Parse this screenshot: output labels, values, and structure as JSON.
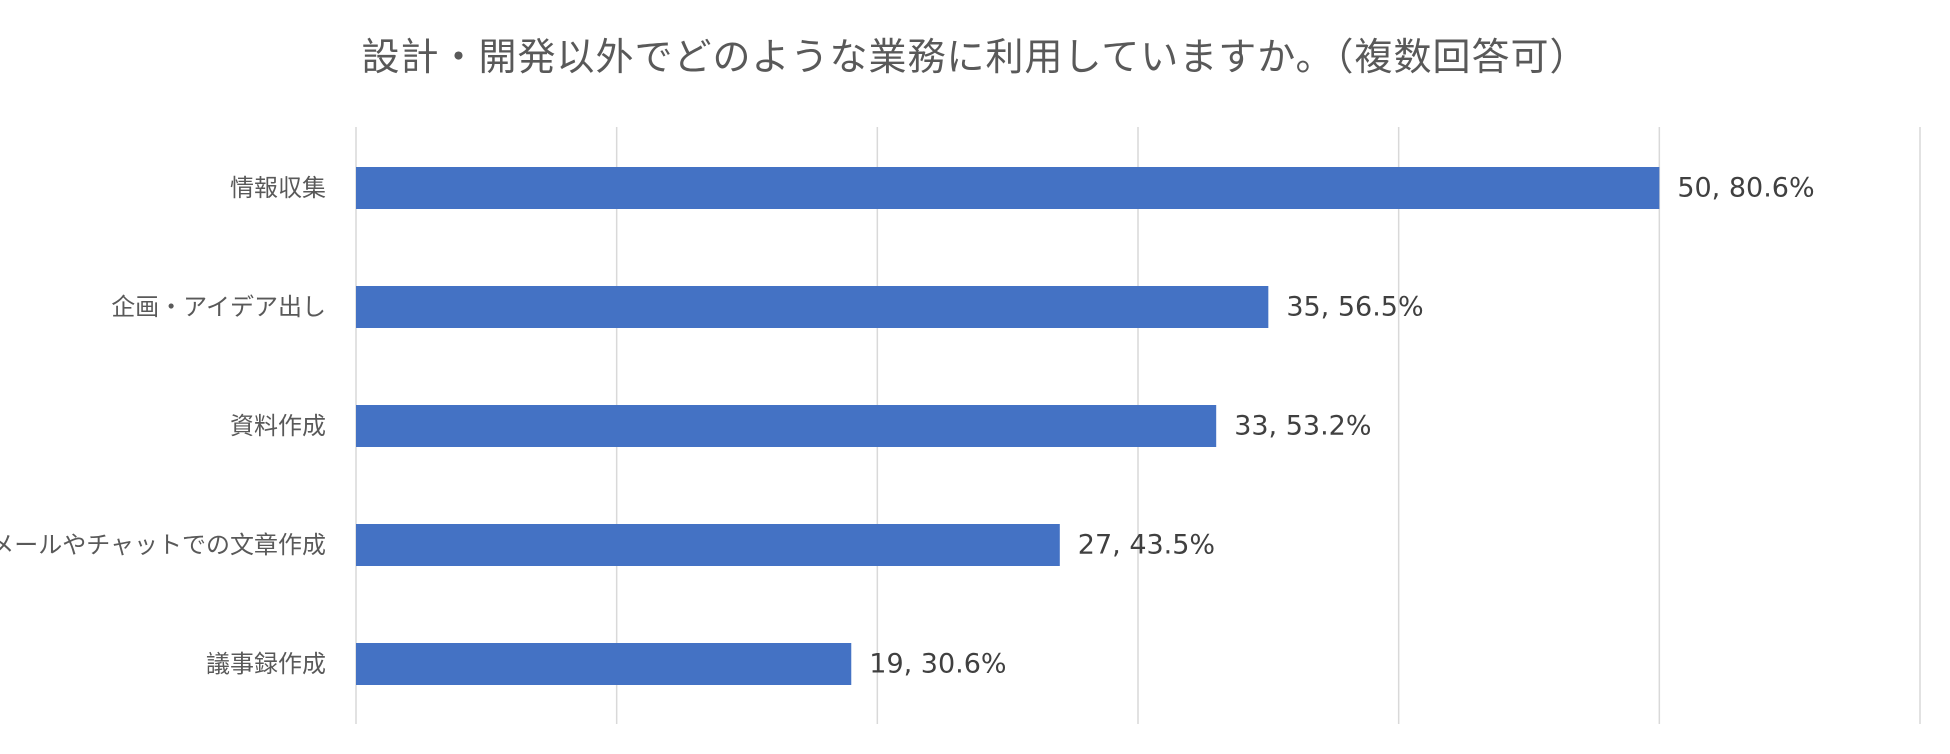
{
  "chart_data": {
    "type": "bar",
    "orientation": "horizontal",
    "title": "設計・開発以外でどのような業務に利用していますか。（複数回答可）",
    "categories": [
      "情報収集",
      "企画・アイデア出し",
      "資料作成",
      "メールやチャットでの文章作成",
      "議事録作成"
    ],
    "values": [
      50,
      35,
      33,
      27,
      19
    ],
    "percentages": [
      80.6,
      56.5,
      53.2,
      43.5,
      30.6
    ],
    "data_labels": [
      "50, 80.6%",
      "35, 56.5%",
      "33, 53.2%",
      "27, 43.5%",
      "19, 30.6%"
    ],
    "xlim": [
      0,
      60
    ],
    "grid": true,
    "legend": false,
    "bar_color": "#4472c4"
  }
}
